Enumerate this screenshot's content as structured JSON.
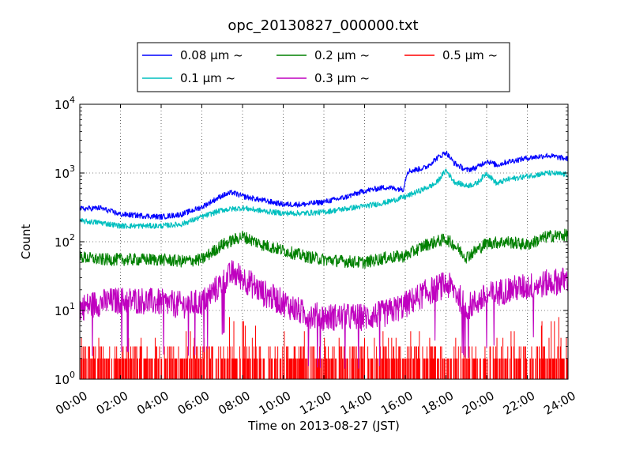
{
  "chart_data": {
    "type": "line",
    "title": "opc_20130827_000000.txt",
    "xlabel": "Time on 2013-08-27 (JST)",
    "ylabel": "Count",
    "x_unit": "hour",
    "xlim": [
      0,
      24
    ],
    "ylim": [
      1,
      10000
    ],
    "yscale": "log",
    "grid": true,
    "legend": {
      "position": "top-center-outside",
      "columns": 3
    },
    "x_tick_labels": [
      "00:00",
      "02:00",
      "04:00",
      "06:00",
      "08:00",
      "10:00",
      "12:00",
      "14:00",
      "16:00",
      "18:00",
      "20:00",
      "22:00",
      "24:00"
    ],
    "y_tick_labels": [
      {
        "base": "10",
        "exp": "0"
      },
      {
        "base": "10",
        "exp": "1"
      },
      {
        "base": "10",
        "exp": "2"
      },
      {
        "base": "10",
        "exp": "3"
      },
      {
        "base": "10",
        "exp": "4"
      }
    ],
    "series": [
      {
        "name": "0.08 μm ~",
        "color": "#0000ff",
        "x": [
          0,
          1,
          2,
          3,
          4,
          5,
          6,
          7,
          7.5,
          8,
          9,
          10,
          11,
          12,
          13,
          14,
          15,
          15.9,
          16.1,
          17,
          17.5,
          18,
          18.4,
          19,
          19.5,
          20,
          20.5,
          21,
          22,
          23,
          24
        ],
        "y": [
          300,
          310,
          250,
          240,
          230,
          250,
          320,
          470,
          520,
          460,
          400,
          350,
          350,
          380,
          440,
          550,
          620,
          580,
          1050,
          1200,
          1600,
          2000,
          1400,
          1100,
          1200,
          1500,
          1300,
          1450,
          1650,
          1800,
          1600
        ]
      },
      {
        "name": "0.1 μm ~",
        "color": "#00bfbf",
        "x": [
          0,
          1,
          2,
          3,
          4,
          5,
          6,
          7,
          8,
          9,
          10,
          11,
          12,
          13,
          14,
          15,
          16,
          17,
          17.5,
          18,
          18.4,
          19,
          19.5,
          20,
          20.5,
          21,
          22,
          23,
          24
        ],
        "y": [
          200,
          190,
          170,
          170,
          170,
          180,
          230,
          290,
          310,
          280,
          260,
          260,
          270,
          300,
          330,
          370,
          450,
          600,
          700,
          1100,
          750,
          650,
          700,
          1000,
          700,
          800,
          900,
          1000,
          950
        ]
      },
      {
        "name": "0.2 μm ~",
        "color": "#008000",
        "x": [
          0,
          1,
          2,
          3,
          4,
          5,
          6,
          7,
          8,
          9,
          10,
          11,
          12,
          13,
          14,
          15,
          16,
          17,
          18,
          18.4,
          19,
          20,
          21,
          22,
          23,
          24
        ],
        "y": [
          60,
          55,
          55,
          55,
          55,
          52,
          55,
          90,
          120,
          90,
          75,
          62,
          55,
          52,
          50,
          58,
          62,
          90,
          110,
          90,
          60,
          95,
          100,
          90,
          120,
          125
        ]
      },
      {
        "name": "0.3 μm ~",
        "color": "#bf00bf",
        "x": [
          0,
          1,
          2,
          3,
          4,
          5,
          6,
          7,
          7.5,
          8,
          9,
          10,
          11,
          12,
          13,
          14,
          15,
          16,
          17,
          18,
          18.4,
          19,
          20,
          21,
          22,
          23,
          24
        ],
        "y": [
          11,
          13,
          14,
          14,
          13,
          12,
          13,
          25,
          35,
          30,
          18,
          13,
          9,
          8,
          8,
          8,
          9,
          12,
          18,
          24,
          20,
          11,
          16,
          20,
          22,
          25,
          28
        ]
      },
      {
        "name": "0.5 μm ~",
        "color": "#ff0000",
        "x": [
          0,
          1,
          2,
          3,
          4,
          5,
          6,
          7,
          7.5,
          8,
          9,
          10,
          11,
          12,
          13,
          14,
          15,
          16,
          17,
          18,
          19,
          20,
          21,
          22,
          23,
          24
        ],
        "y": [
          1.6,
          1.6,
          1.6,
          1.6,
          1.6,
          1.5,
          1.6,
          2.2,
          2.8,
          2.5,
          1.8,
          1.6,
          1.5,
          1.6,
          1.5,
          1.5,
          1.6,
          1.6,
          1.6,
          1.7,
          1.6,
          1.7,
          1.7,
          1.8,
          2.3,
          2.6
        ]
      }
    ]
  }
}
